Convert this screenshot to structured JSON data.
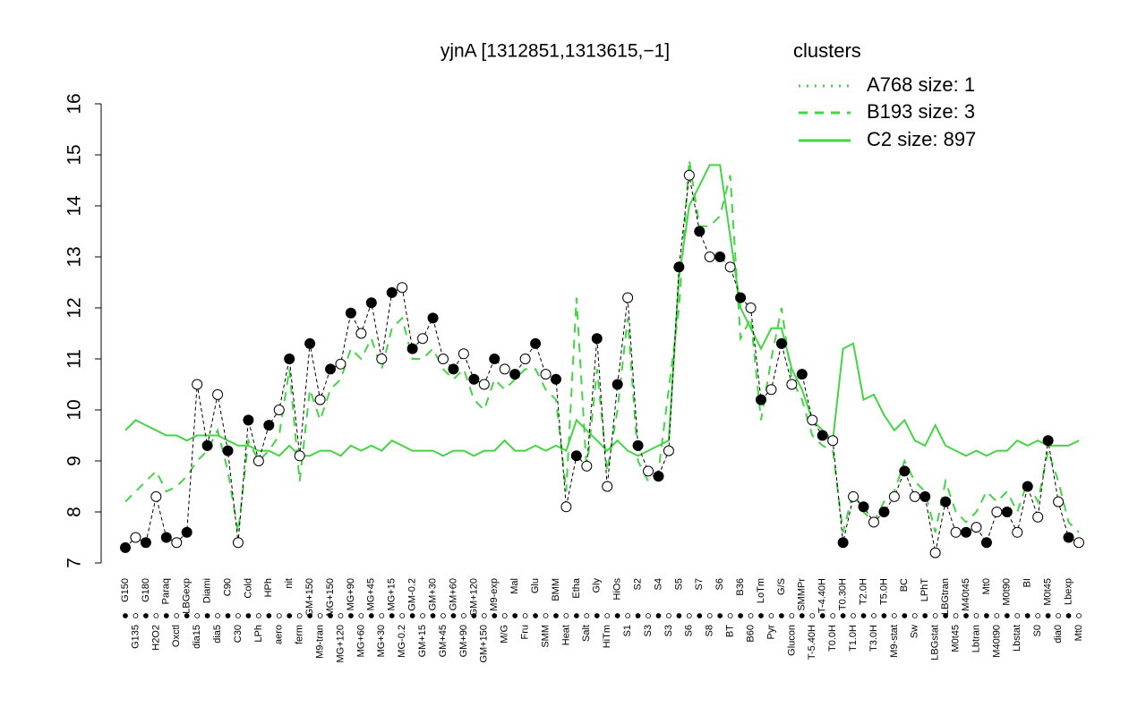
{
  "chart_data": {
    "type": "line",
    "title": "yjnA [1312851,1313615,−1]",
    "legend_title": "clusters",
    "legend_position": "top-right",
    "legend_color": "#44d444",
    "ylim": [
      7,
      16
    ],
    "yticks": [
      7,
      8,
      9,
      10,
      11,
      12,
      13,
      14,
      15,
      16
    ],
    "categories": [
      "G150",
      "G135",
      "G180",
      "H2O2",
      "Paraq",
      "Oxctl",
      "LBGexp",
      "dia15",
      "Diami",
      "dia5",
      "C90",
      "C30",
      "Cold",
      "LPh",
      "HPh",
      "aero",
      "nit",
      "ferm",
      "GM+150",
      "M9-tran",
      "MG+150",
      "MG+120",
      "MG+90",
      "MG+60",
      "MG+45",
      "MG+30",
      "MG+15",
      "MG-0.2",
      "GM-0.2",
      "GM+15",
      "GM+30",
      "GM+45",
      "GM+60",
      "GM+90",
      "GM+120",
      "GM+150",
      "M9-exp",
      "M/G",
      "Mal",
      "Fru",
      "Glu",
      "SMM",
      "BMM",
      "Heat",
      "Etha",
      "Salt",
      "Gly",
      "HiTm",
      "HiOs",
      "S1",
      "S2",
      "S3",
      "S4",
      "S3",
      "S5",
      "S6",
      "S7",
      "S8",
      "S6",
      "BT",
      "B36",
      "B60",
      "LoTm",
      "Pyr",
      "G/S",
      "Glucon",
      "SMMPr",
      "T-5.40H",
      "T-4.40H",
      "T0.0H",
      "T0.30H",
      "T1.0H",
      "T2.0H",
      "T3.0H",
      "T5.0H",
      "M9-stat",
      "BC",
      "Sw",
      "LPhT",
      "LBGstat",
      "LBGtran",
      "M0t45",
      "M40t45",
      "Lbtran",
      "Mt0",
      "M40t90",
      "M0t90",
      "Lbstat",
      "BI",
      "S0",
      "M0t45",
      "dia0",
      "Lbexp",
      "Mt0"
    ],
    "values": [
      7.3,
      7.5,
      7.4,
      8.3,
      7.5,
      7.4,
      7.6,
      10.5,
      9.3,
      10.3,
      9.2,
      7.4,
      9.8,
      9.0,
      9.7,
      10.0,
      11.0,
      9.1,
      11.3,
      10.2,
      10.8,
      10.9,
      11.9,
      11.5,
      12.1,
      11.0,
      12.3,
      12.4,
      11.2,
      11.4,
      11.8,
      11.0,
      10.8,
      11.1,
      10.6,
      10.5,
      11.0,
      10.8,
      10.7,
      11.0,
      11.3,
      10.7,
      10.6,
      8.1,
      9.1,
      8.9,
      11.4,
      8.5,
      10.5,
      12.2,
      9.3,
      8.8,
      8.7,
      9.2,
      12.8,
      14.6,
      13.5,
      13.0,
      13.0,
      12.8,
      12.2,
      12.0,
      10.2,
      10.4,
      11.3,
      10.5,
      10.7,
      9.8,
      9.5,
      9.4,
      7.4,
      8.3,
      8.1,
      7.8,
      8.0,
      8.3,
      8.8,
      8.3,
      8.3,
      7.2,
      8.2,
      7.6,
      7.6,
      7.7,
      7.4,
      8.0,
      8.0,
      7.6,
      8.5,
      7.9,
      9.4,
      8.2,
      7.5,
      7.4
    ],
    "series": [
      {
        "name": "A768 size: 1",
        "color": "#44d444",
        "dash": "dotted",
        "values": [
          null,
          null,
          null,
          null,
          null,
          null,
          null,
          null,
          null,
          null,
          null,
          null,
          null,
          null,
          null,
          null,
          null,
          null,
          null,
          null,
          null,
          null,
          null,
          null,
          null,
          null,
          null,
          null,
          null,
          null,
          null,
          null,
          null,
          null,
          null,
          null,
          null,
          null,
          null,
          null,
          null,
          null,
          null,
          null,
          null,
          null,
          null,
          null,
          null,
          null,
          null,
          null,
          null,
          null,
          null,
          null,
          null,
          null,
          null,
          null,
          null,
          null,
          null,
          null,
          null,
          null,
          null,
          null,
          null,
          null,
          null,
          null,
          null,
          null,
          null,
          null,
          null,
          null,
          null,
          null,
          null,
          null,
          null,
          null,
          null,
          null,
          null,
          null,
          null,
          null,
          null,
          null,
          null,
          null
        ]
      },
      {
        "name": "B193 size: 3",
        "color": "#44d444",
        "dash": "dashed",
        "values": [
          8.2,
          8.4,
          8.6,
          8.8,
          8.4,
          8.5,
          8.7,
          9.0,
          9.2,
          9.6,
          8.8,
          7.6,
          9.4,
          9.0,
          9.2,
          9.5,
          10.8,
          8.6,
          10.4,
          9.8,
          10.4,
          10.6,
          11.2,
          11.0,
          11.4,
          10.8,
          11.6,
          11.8,
          11.0,
          11.0,
          11.2,
          10.8,
          10.6,
          10.8,
          10.2,
          10.0,
          10.6,
          10.4,
          10.6,
          10.8,
          10.8,
          10.4,
          10.2,
          8.4,
          12.2,
          8.8,
          10.8,
          8.8,
          10.0,
          11.8,
          9.0,
          8.6,
          8.8,
          10.4,
          12.0,
          14.9,
          13.6,
          13.6,
          13.8,
          14.6,
          11.4,
          11.8,
          9.8,
          11.0,
          12.0,
          10.6,
          10.2,
          9.5,
          9.3,
          9.2,
          7.6,
          8.4,
          8.0,
          7.8,
          8.2,
          8.4,
          9.0,
          8.6,
          8.4,
          7.6,
          8.6,
          8.0,
          7.8,
          8.0,
          8.4,
          8.2,
          8.4,
          8.0,
          8.6,
          8.2,
          9.2,
          8.6,
          7.8,
          7.6
        ]
      },
      {
        "name": "C2 size: 897",
        "color": "#44d444",
        "dash": "solid",
        "values": [
          9.6,
          9.8,
          9.7,
          9.6,
          9.5,
          9.5,
          9.4,
          9.5,
          9.5,
          9.5,
          9.4,
          9.3,
          9.3,
          9.2,
          9.2,
          9.1,
          9.3,
          9.1,
          9.1,
          9.2,
          9.2,
          9.1,
          9.3,
          9.2,
          9.3,
          9.2,
          9.4,
          9.3,
          9.2,
          9.2,
          9.2,
          9.1,
          9.2,
          9.2,
          9.1,
          9.2,
          9.2,
          9.4,
          9.2,
          9.2,
          9.3,
          9.2,
          9.3,
          9.2,
          9.8,
          9.6,
          9.4,
          9.2,
          9.4,
          9.2,
          9.1,
          9.2,
          9.3,
          9.4,
          12.6,
          14.0,
          14.4,
          14.8,
          14.8,
          13.4,
          12.0,
          11.6,
          11.2,
          11.6,
          11.6,
          10.8,
          10.4,
          9.8,
          9.6,
          9.4,
          11.2,
          11.3,
          10.2,
          10.3,
          9.9,
          9.6,
          9.8,
          9.4,
          9.3,
          9.7,
          9.3,
          9.2,
          9.1,
          9.2,
          9.1,
          9.2,
          9.2,
          9.4,
          9.3,
          9.4,
          9.3,
          9.3,
          9.3,
          9.4
        ]
      }
    ]
  }
}
